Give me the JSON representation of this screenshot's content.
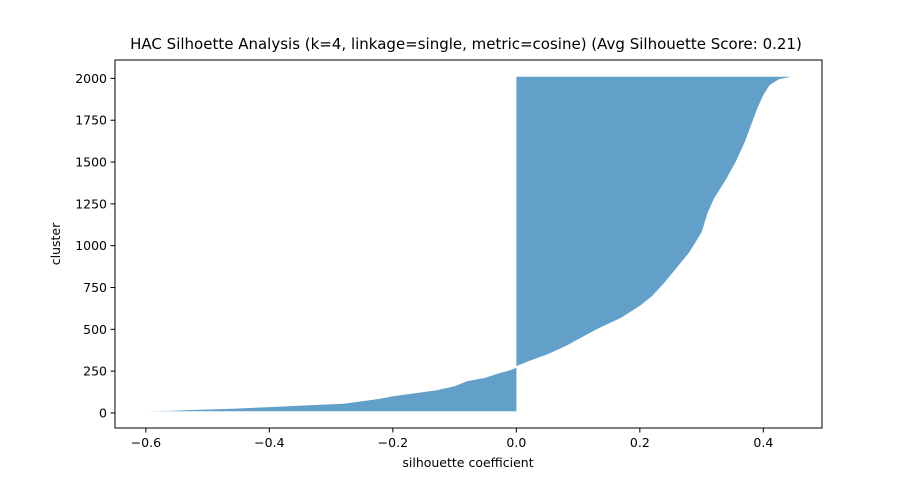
{
  "chart_data": {
    "type": "area",
    "title": "HAC Silhoette Analysis (k=4, linkage=single, metric=cosine) (Avg Silhouette Score: 0.21)",
    "xlabel": "silhouette coefficient",
    "ylabel": "cluster",
    "xlim": [
      -0.65,
      0.495
    ],
    "ylim": [
      -90,
      2110
    ],
    "xticks": [
      -0.6,
      -0.4,
      -0.2,
      0.0,
      0.2,
      0.4
    ],
    "xtick_labels": [
      "−0.6",
      "−0.4",
      "−0.2",
      "0.0",
      "0.2",
      "0.4"
    ],
    "yticks": [
      0,
      250,
      500,
      750,
      1000,
      1250,
      1500,
      1750,
      2000
    ],
    "ytick_labels": [
      "0",
      "250",
      "500",
      "750",
      "1000",
      "1250",
      "1500",
      "1750",
      "2000"
    ],
    "grid": false,
    "fill_color": "#1f77b4",
    "fill_alpha": 0.7,
    "series": [
      {
        "points": [
          [
            -0.6,
            10
          ],
          [
            -0.56,
            12
          ],
          [
            -0.52,
            18
          ],
          [
            -0.46,
            25
          ],
          [
            -0.4,
            35
          ],
          [
            -0.34,
            45
          ],
          [
            -0.28,
            55
          ],
          [
            -0.25,
            70
          ],
          [
            -0.22,
            85
          ],
          [
            -0.2,
            100
          ],
          [
            -0.17,
            115
          ],
          [
            -0.13,
            135
          ],
          [
            -0.1,
            160
          ],
          [
            -0.08,
            190
          ],
          [
            -0.05,
            210
          ],
          [
            -0.03,
            235
          ],
          [
            -0.01,
            255
          ],
          [
            0.0,
            270
          ],
          [
            0.0,
            280
          ],
          [
            0.02,
            310
          ],
          [
            0.05,
            350
          ],
          [
            0.08,
            400
          ],
          [
            0.1,
            440
          ],
          [
            0.13,
            500
          ],
          [
            0.17,
            570
          ],
          [
            0.2,
            640
          ],
          [
            0.22,
            700
          ],
          [
            0.24,
            780
          ],
          [
            0.26,
            870
          ],
          [
            0.28,
            960
          ],
          [
            0.3,
            1080
          ],
          [
            0.31,
            1200
          ],
          [
            0.32,
            1280
          ],
          [
            0.34,
            1400
          ],
          [
            0.355,
            1500
          ],
          [
            0.37,
            1620
          ],
          [
            0.38,
            1720
          ],
          [
            0.39,
            1820
          ],
          [
            0.4,
            1900
          ],
          [
            0.41,
            1960
          ],
          [
            0.425,
            1995
          ],
          [
            0.445,
            2010
          ]
        ]
      }
    ]
  }
}
